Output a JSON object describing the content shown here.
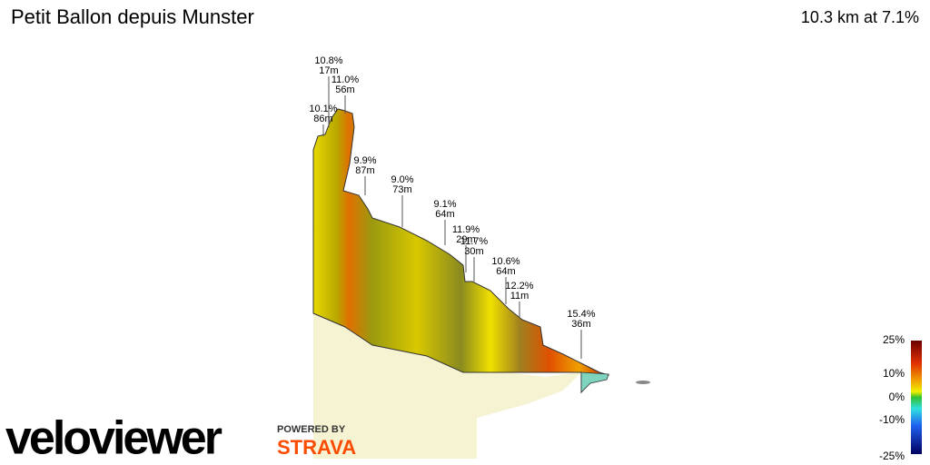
{
  "header": {
    "title": "Petit Ballon depuis Munster",
    "summary": "10.3 km at 7.1%"
  },
  "annotations": [
    {
      "grade": "10.8%",
      "length": "17m"
    },
    {
      "grade": "11.0%",
      "length": "56m"
    },
    {
      "grade": "10.1%",
      "length": "86m"
    },
    {
      "grade": "9.9%",
      "length": "87m"
    },
    {
      "grade": "9.0%",
      "length": "73m"
    },
    {
      "grade": "9.1%",
      "length": "64m"
    },
    {
      "grade": "11.9%",
      "length": "29m"
    },
    {
      "grade": "11.7%",
      "length": "30m"
    },
    {
      "grade": "10.6%",
      "length": "64m"
    },
    {
      "grade": "12.2%",
      "length": "11m"
    },
    {
      "grade": "15.4%",
      "length": "36m"
    }
  ],
  "legend": {
    "ticks": [
      "25%",
      "10%",
      "0%",
      "-10%",
      "-25%"
    ]
  },
  "logos": {
    "brand": "veloviewer",
    "powered": "POWERED BY",
    "partner": "STRAVA"
  }
}
